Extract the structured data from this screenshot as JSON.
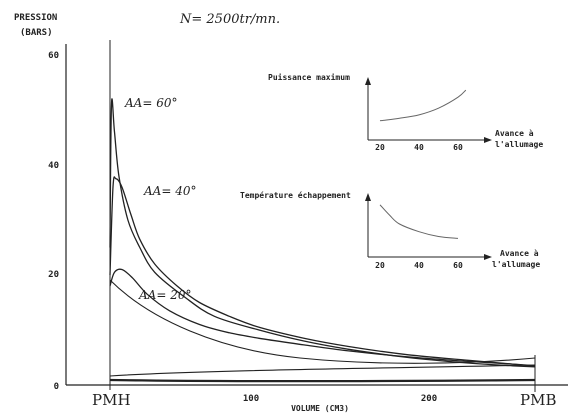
{
  "chart_data": [
    {
      "type": "line",
      "subtitle": "N= 2500tr/mn.",
      "ylabel": [
        "PRESSION",
        "(BARS)"
      ],
      "xlabel": "VOLUME (CM3)",
      "x_tick_labels": [
        "100",
        "200"
      ],
      "y_tick_labels": [
        "0",
        "20",
        "40",
        "60"
      ],
      "x_end_labels": [
        "PMH",
        "PMB"
      ],
      "ylim": [
        0,
        60
      ],
      "grid": false,
      "series": [
        {
          "name": "AA= 60°",
          "x": [
            0,
            1,
            3,
            6,
            12,
            20,
            30,
            50,
            70,
            100,
            130,
            160,
            200,
            240,
            270,
            285
          ],
          "y": [
            25,
            51,
            46,
            38,
            30,
            25,
            20.5,
            16,
            12.5,
            10,
            8,
            6.5,
            5,
            4,
            3.5,
            3.3
          ]
        },
        {
          "name": "AA= 40°",
          "x": [
            0,
            2,
            4,
            8,
            14,
            20,
            30,
            45,
            60,
            80,
            100,
            130,
            160,
            200,
            240,
            270,
            285
          ],
          "y": [
            20,
            36,
            37.5,
            36,
            31,
            26.5,
            22,
            18,
            15,
            12.5,
            10.5,
            8.5,
            7,
            5.5,
            4.5,
            3.8,
            3.4
          ]
        },
        {
          "name": "AA= 20°",
          "x": [
            0,
            3,
            8,
            15,
            25,
            40,
            60,
            80,
            100,
            130,
            160,
            200,
            240,
            270,
            285
          ],
          "y": [
            18,
            20.5,
            21,
            19.5,
            16.5,
            13.5,
            11,
            9.5,
            8.5,
            7.3,
            6.2,
            5.1,
            4.3,
            3.8,
            3.5
          ]
        }
      ]
    },
    {
      "type": "line",
      "title": "Puissance maximum",
      "xlabel": "Avance à l'allumage",
      "x_tick_labels": [
        "20",
        "40",
        "60"
      ],
      "series": [
        {
          "x": [
            20,
            30,
            40,
            50,
            60,
            64
          ],
          "y": [
            0.22,
            0.28,
            0.36,
            0.52,
            0.78,
            0.95
          ]
        }
      ]
    },
    {
      "type": "line",
      "title": "Température échappement",
      "xlabel": "Avance à l'allumage",
      "x_tick_labels": [
        "20",
        "40",
        "60"
      ],
      "series": [
        {
          "x": [
            20,
            25,
            30,
            40,
            50,
            60
          ],
          "y": [
            0.9,
            0.68,
            0.5,
            0.34,
            0.24,
            0.2
          ]
        }
      ]
    }
  ]
}
